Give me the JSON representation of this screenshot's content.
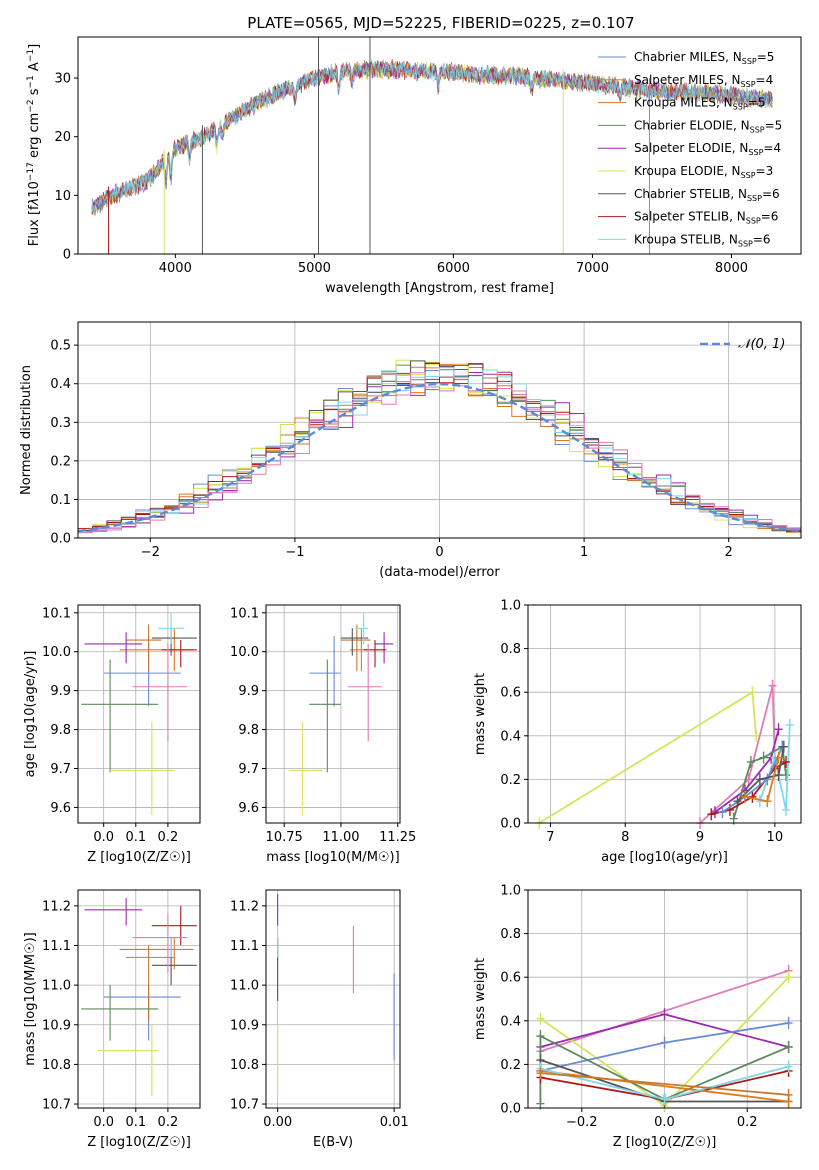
{
  "figure": {
    "title": "PLATE=0565, MJD=52225, FIBERID=0225, z=0.107"
  },
  "colors": {
    "Chabrier MILES": "#6a8bd6",
    "Salpeter MILES": "#e07a20",
    "Kroupa MILES": "#c8782e",
    "Chabrier ELODIE": "#5d8a5d",
    "Salpeter ELODIE": "#9a2ab0",
    "Kroupa ELODIE": "#d7e45a",
    "Chabrier STELIB": "#555555",
    "Salpeter STELIB": "#b01818",
    "Kroupa STELIB": "#7fd8e8",
    "pink": "#e07ab8",
    "normal": "#5b8bd8"
  },
  "chart_data": [
    {
      "id": "spectrum",
      "type": "line",
      "title": "PLATE=0565, MJD=52225, FIBERID=0225, z=0.107",
      "xlabel": "wavelength [Angstrom, rest frame]",
      "ylabel": "Flux [f_λ 10^-17 erg cm^-2 s^-1 A^-1]",
      "xlim": [
        3300,
        8500
      ],
      "ylim": [
        0,
        37
      ],
      "xticks": [
        "4000",
        "5000",
        "6000",
        "7000",
        "8000"
      ],
      "yticks": [
        "0",
        "10",
        "20",
        "30"
      ],
      "grid": false,
      "legend_position": "top-right",
      "continuum": {
        "x": [
          3400,
          3600,
          3800,
          4000,
          4200,
          4400,
          4600,
          4800,
          5000,
          5200,
          5400,
          5600,
          5800,
          6000,
          6200,
          6400,
          6600,
          6800,
          7000,
          7200,
          7400,
          7600,
          7800,
          8000,
          8200,
          8300
        ],
        "y": [
          8,
          10.5,
          12.5,
          18,
          20,
          23,
          26,
          28,
          30,
          31,
          31.5,
          31.5,
          31,
          31,
          30.5,
          30.5,
          30,
          29.5,
          29,
          28.5,
          28,
          27.5,
          27.5,
          27,
          26.5,
          26
        ]
      },
      "series": [
        {
          "name": "Chabrier MILES",
          "nssp": "5"
        },
        {
          "name": "Salpeter MILES",
          "nssp": "4"
        },
        {
          "name": "Kroupa MILES",
          "nssp": "5"
        },
        {
          "name": "Chabrier ELODIE",
          "nssp": "5"
        },
        {
          "name": "Salpeter ELODIE",
          "nssp": "4"
        },
        {
          "name": "Kroupa ELODIE",
          "nssp": "3"
        },
        {
          "name": "Chabrier STELIB",
          "nssp": "6"
        },
        {
          "name": "Salpeter STELIB",
          "nssp": "6"
        },
        {
          "name": "Kroupa STELIB",
          "nssp": "6"
        }
      ]
    },
    {
      "id": "residuals",
      "type": "bar",
      "xlabel": "(data-model)/error",
      "ylabel": "Normed distribution",
      "xlim": [
        -2.5,
        2.5
      ],
      "ylim": [
        0,
        0.56
      ],
      "xticks": [
        "−2",
        "−1",
        "0",
        "1",
        "2"
      ],
      "yticks": [
        "0.0",
        "0.1",
        "0.2",
        "0.3",
        "0.4",
        "0.5"
      ],
      "grid": true,
      "legend": "𝒩(0, 1)",
      "legend_position": "top-right",
      "bin_width": 0.1,
      "bin_start": -2.5
    },
    {
      "id": "age-vs-Z",
      "type": "scatter",
      "xlabel": "Z [log10(Z/Z☉)]",
      "ylabel": "age  [log10(age/yr)]",
      "xlim": [
        -0.08,
        0.3
      ],
      "ylim": [
        9.56,
        10.12
      ],
      "xticks": [
        "0.0",
        "0.1",
        "0.2"
      ],
      "yticks": [
        "9.6",
        "9.7",
        "9.8",
        "9.9",
        "10.0",
        "10.1"
      ],
      "grid": true,
      "points": [
        {
          "c": "Chabrier MILES",
          "x": 0.14,
          "y": 9.945,
          "xl": 0.0,
          "xh": 0.24,
          "yl": 9.86,
          "yh": 10.04
        },
        {
          "c": "Salpeter MILES",
          "x": 0.22,
          "y": 10.005,
          "xl": 0.05,
          "xh": 0.28,
          "yl": 9.95,
          "yh": 10.06
        },
        {
          "c": "Kroupa MILES",
          "x": 0.14,
          "y": 10.03,
          "xl": 0.07,
          "xh": 0.18,
          "yl": 9.95,
          "yh": 10.07
        },
        {
          "c": "Chabrier ELODIE",
          "x": 0.02,
          "y": 9.865,
          "xl": -0.07,
          "xh": 0.17,
          "yl": 9.69,
          "yh": 9.98
        },
        {
          "c": "Salpeter ELODIE",
          "x": 0.07,
          "y": 10.02,
          "xl": -0.06,
          "xh": 0.12,
          "yl": 9.97,
          "yh": 10.05
        },
        {
          "c": "Kroupa ELODIE",
          "x": 0.15,
          "y": 9.695,
          "xl": 0.02,
          "xh": 0.22,
          "yl": 9.58,
          "yh": 9.82
        },
        {
          "c": "Chabrier STELIB",
          "x": 0.21,
          "y": 10.035,
          "xl": 0.15,
          "xh": 0.29,
          "yl": 9.99,
          "yh": 10.06
        },
        {
          "c": "Salpeter STELIB",
          "x": 0.24,
          "y": 10.005,
          "xl": 0.18,
          "xh": 0.29,
          "yl": 9.96,
          "yh": 10.03
        },
        {
          "c": "Kroupa STELIB",
          "x": 0.21,
          "y": 10.06,
          "xl": 0.17,
          "xh": 0.25,
          "yl": 10.02,
          "yh": 10.1
        },
        {
          "c": "pink",
          "x": 0.2,
          "y": 9.91,
          "xl": 0.09,
          "xh": 0.26,
          "yl": 9.77,
          "yh": 10.02
        }
      ]
    },
    {
      "id": "age-vs-mass",
      "type": "scatter",
      "xlabel": "mass [log10(M/M☉)]",
      "ylabel": "",
      "xlim": [
        10.67,
        11.26
      ],
      "ylim": [
        9.56,
        10.12
      ],
      "xticks": [
        "10.75",
        "11.00",
        "11.25"
      ],
      "yticks": [
        "9.6",
        "9.7",
        "9.8",
        "9.9",
        "10.0",
        "10.1"
      ],
      "grid": true,
      "points": [
        {
          "c": "Chabrier MILES",
          "x": 10.97,
          "y": 9.945,
          "xl": 10.86,
          "xh": 11.0,
          "yl": 9.86,
          "yh": 10.04
        },
        {
          "c": "Salpeter MILES",
          "x": 11.09,
          "y": 10.005,
          "xl": 11.04,
          "xh": 11.12,
          "yl": 9.95,
          "yh": 10.06
        },
        {
          "c": "Kroupa MILES",
          "x": 11.07,
          "y": 10.03,
          "xl": 11.0,
          "xh": 11.13,
          "yl": 9.95,
          "yh": 10.07
        },
        {
          "c": "Chabrier ELODIE",
          "x": 10.94,
          "y": 9.865,
          "xl": 10.86,
          "xh": 11.0,
          "yl": 9.69,
          "yh": 9.98
        },
        {
          "c": "Salpeter ELODIE",
          "x": 11.19,
          "y": 10.02,
          "xl": 11.15,
          "xh": 11.23,
          "yl": 9.97,
          "yh": 10.05
        },
        {
          "c": "Kroupa ELODIE",
          "x": 10.83,
          "y": 9.695,
          "xl": 10.77,
          "xh": 10.92,
          "yl": 9.58,
          "yh": 9.82
        },
        {
          "c": "Chabrier STELIB",
          "x": 11.05,
          "y": 10.035,
          "xl": 11.0,
          "xh": 11.12,
          "yl": 9.99,
          "yh": 10.06
        },
        {
          "c": "Salpeter STELIB",
          "x": 11.15,
          "y": 10.005,
          "xl": 11.1,
          "xh": 11.2,
          "yl": 9.96,
          "yh": 10.03
        },
        {
          "c": "Kroupa STELIB",
          "x": 11.1,
          "y": 10.06,
          "xl": 11.07,
          "xh": 11.12,
          "yl": 10.02,
          "yh": 10.1
        },
        {
          "c": "pink",
          "x": 11.12,
          "y": 9.91,
          "xl": 11.03,
          "xh": 11.18,
          "yl": 9.77,
          "yh": 10.02
        }
      ]
    },
    {
      "id": "weight-vs-age",
      "type": "line",
      "xlabel": "age  [log10(age/yr)]",
      "ylabel": "mass weight",
      "xlim": [
        6.7,
        10.35
      ],
      "ylim": [
        0,
        1
      ],
      "xticks": [
        "7",
        "8",
        "9",
        "10"
      ],
      "yticks": [
        "0.0",
        "0.2",
        "0.4",
        "0.6",
        "0.8",
        "1.0"
      ],
      "grid": true,
      "series": [
        {
          "c": "Kroupa ELODIE",
          "x": [
            6.85,
            9.7,
            9.75
          ],
          "y": [
            0.0,
            0.6,
            0.4
          ]
        },
        {
          "c": "pink",
          "x": [
            9.0,
            9.65,
            9.97,
            10.0
          ],
          "y": [
            0.0,
            0.2,
            0.63,
            0.3
          ]
        },
        {
          "c": "Salpeter ELODIE",
          "x": [
            9.2,
            9.6,
            9.95,
            10.05
          ],
          "y": [
            0.05,
            0.15,
            0.3,
            0.43
          ]
        },
        {
          "c": "Chabrier ELODIE",
          "x": [
            9.45,
            9.68,
            9.85,
            10.1,
            10.15
          ],
          "y": [
            0.02,
            0.28,
            0.3,
            0.35,
            0.22
          ]
        },
        {
          "c": "Kroupa STELIB",
          "x": [
            9.8,
            10.0,
            10.15,
            10.2
          ],
          "y": [
            0.1,
            0.3,
            0.06,
            0.45
          ]
        },
        {
          "c": "Salpeter STELIB",
          "x": [
            9.15,
            9.4,
            9.7,
            10.0,
            10.15
          ],
          "y": [
            0.04,
            0.06,
            0.12,
            0.25,
            0.28
          ]
        },
        {
          "c": "Chabrier MILES",
          "x": [
            9.3,
            9.6,
            9.9,
            10.1
          ],
          "y": [
            0.05,
            0.12,
            0.2,
            0.35
          ]
        },
        {
          "c": "Chabrier STELIB",
          "x": [
            9.5,
            9.8,
            10.05,
            10.12
          ],
          "y": [
            0.1,
            0.2,
            0.22,
            0.35
          ]
        },
        {
          "c": "Salpeter MILES",
          "x": [
            9.6,
            9.9,
            10.05
          ],
          "y": [
            0.12,
            0.1,
            0.3
          ]
        }
      ]
    },
    {
      "id": "mass-vs-Z",
      "type": "scatter",
      "xlabel": "Z [log10(Z/Z☉)]",
      "ylabel": "mass [log10(M/M☉)]",
      "xlim": [
        -0.08,
        0.3
      ],
      "ylim": [
        10.69,
        11.24
      ],
      "xticks": [
        "0.0",
        "0.1",
        "0.2"
      ],
      "yticks": [
        "10.7",
        "10.8",
        "10.9",
        "11.0",
        "11.1",
        "11.2"
      ],
      "grid": true,
      "points": [
        {
          "c": "Chabrier MILES",
          "x": 0.14,
          "y": 10.97,
          "xl": 0.0,
          "xh": 0.24,
          "yl": 10.86,
          "yh": 11.0
        },
        {
          "c": "Salpeter MILES",
          "x": 0.22,
          "y": 11.09,
          "xl": 0.05,
          "xh": 0.28,
          "yl": 11.04,
          "yh": 11.12
        },
        {
          "c": "Kroupa MILES",
          "x": 0.14,
          "y": 11.07,
          "xl": 0.07,
          "xh": 0.22,
          "yl": 10.91,
          "yh": 11.1
        },
        {
          "c": "Chabrier ELODIE",
          "x": 0.02,
          "y": 10.94,
          "xl": -0.07,
          "xh": 0.17,
          "yl": 10.86,
          "yh": 11.0
        },
        {
          "c": "Salpeter ELODIE",
          "x": 0.07,
          "y": 11.19,
          "xl": -0.06,
          "xh": 0.12,
          "yl": 11.15,
          "yh": 11.22
        },
        {
          "c": "Kroupa ELODIE",
          "x": 0.15,
          "y": 10.835,
          "xl": -0.02,
          "xh": 0.17,
          "yl": 10.72,
          "yh": 10.9
        },
        {
          "c": "Chabrier STELIB",
          "x": 0.21,
          "y": 11.05,
          "xl": 0.15,
          "xh": 0.29,
          "yl": 11.0,
          "yh": 11.12
        },
        {
          "c": "Salpeter STELIB",
          "x": 0.24,
          "y": 11.15,
          "xl": 0.15,
          "xh": 0.29,
          "yl": 11.1,
          "yh": 11.2
        },
        {
          "c": "Kroupa STELIB",
          "x": 0.21,
          "y": 11.1,
          "xl": 0.17,
          "xh": 0.25,
          "yl": 11.07,
          "yh": 11.12
        },
        {
          "c": "pink",
          "x": 0.2,
          "y": 11.12,
          "xl": 0.09,
          "xh": 0.26,
          "yl": 11.03,
          "yh": 11.18
        }
      ]
    },
    {
      "id": "mass-vs-ebv",
      "type": "scatter",
      "xlabel": "E(B-V)",
      "ylabel": "",
      "xlim": [
        -0.001,
        0.0105
      ],
      "ylim": [
        10.69,
        11.24
      ],
      "xticks": [
        "0.00",
        "0.01"
      ],
      "yticks": [
        "10.7",
        "10.8",
        "10.9",
        "11.0",
        "11.1",
        "11.2"
      ],
      "grid": true,
      "points": [
        {
          "c": "Salpeter ELODIE",
          "x": 0.0,
          "y": 11.19,
          "yl": 11.15,
          "yh": 11.23
        },
        {
          "c": "Chabrier STELIB",
          "x": 0.0,
          "y": 11.06,
          "yl": 10.96,
          "yh": 11.12
        },
        {
          "c": "Kroupa STELIB",
          "x": 0.0,
          "y": 11.1,
          "yl": 11.07,
          "yh": 11.13
        },
        {
          "c": "Kroupa ELODIE",
          "x": 0.0,
          "y": 10.83,
          "yl": 10.72,
          "yh": 10.9
        },
        {
          "c": "pink",
          "x": 0.0065,
          "y": 11.06,
          "yl": 10.98,
          "yh": 11.15
        },
        {
          "c": "Chabrier MILES",
          "x": 0.01,
          "y": 10.92,
          "yl": 10.81,
          "yh": 11.03
        }
      ]
    },
    {
      "id": "weight-vs-Z",
      "type": "line",
      "xlabel": "Z [log10(Z/Z☉)]",
      "ylabel": "mass weight",
      "xlim": [
        -0.33,
        0.33
      ],
      "ylim": [
        0,
        1
      ],
      "xticks": [
        "−0.2",
        "0.0",
        "0.2"
      ],
      "yticks": [
        "0.0",
        "0.2",
        "0.4",
        "0.6",
        "0.8",
        "1.0"
      ],
      "grid": true,
      "series": [
        {
          "c": "pink",
          "x": [
            -0.3,
            0.3
          ],
          "y": [
            0.26,
            0.63
          ]
        },
        {
          "c": "Kroupa ELODIE",
          "x": [
            -0.3,
            0.0,
            0.3
          ],
          "y": [
            0.41,
            0.01,
            0.6
          ]
        },
        {
          "c": "Salpeter ELODIE",
          "x": [
            -0.3,
            0.0,
            0.3
          ],
          "y": [
            0.28,
            0.43,
            0.28
          ]
        },
        {
          "c": "Chabrier MILES",
          "x": [
            -0.3,
            0.0,
            0.3
          ],
          "y": [
            0.17,
            0.3,
            0.39
          ]
        },
        {
          "c": "Chabrier ELODIE",
          "x": [
            -0.3,
            -0.3,
            0.0,
            0.3
          ],
          "y": [
            0.02,
            0.33,
            0.04,
            0.28
          ]
        },
        {
          "c": "Chabrier STELIB",
          "x": [
            -0.3,
            0.0,
            0.3
          ],
          "y": [
            0.22,
            0.03,
            0.03
          ]
        },
        {
          "c": "Salpeter STELIB",
          "x": [
            -0.3,
            0.0,
            0.3
          ],
          "y": [
            0.14,
            0.04,
            0.17
          ]
        },
        {
          "c": "Salpeter MILES",
          "x": [
            -0.3,
            0.3
          ],
          "y": [
            0.17,
            0.03
          ]
        },
        {
          "c": "Kroupa STELIB",
          "x": [
            -0.3,
            0.0,
            0.3
          ],
          "y": [
            0.18,
            0.04,
            0.19
          ]
        },
        {
          "c": "Kroupa MILES",
          "x": [
            -0.3,
            0.3
          ],
          "y": [
            0.16,
            0.06
          ]
        }
      ]
    }
  ]
}
